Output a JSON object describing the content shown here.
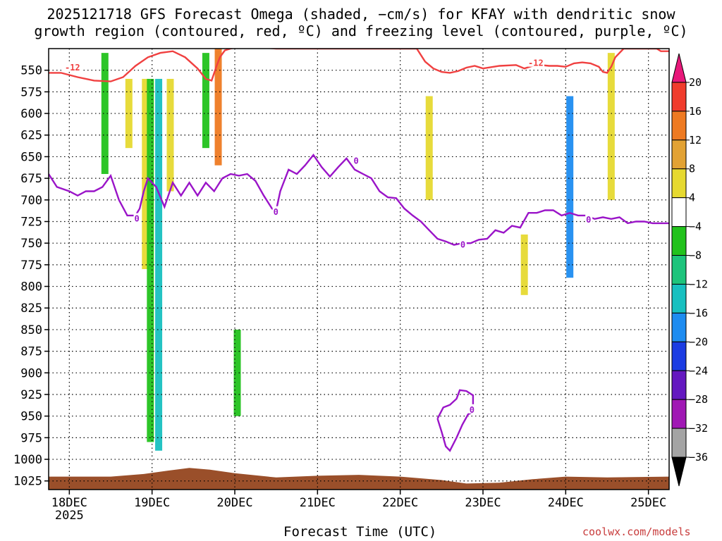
{
  "title_line1": "2025121718 GFS Forecast Omega (shaded, −cm/s) for KFAY with dendritic snow",
  "title_line2": "growth region (contoured, red, ºC) and freezing level (contoured, purple, ºC)",
  "credit": "coolwx.com/models",
  "chart_data": {
    "type": "heatmap",
    "title": "2025121718 GFS Forecast Omega (shaded, −cm/s) for KFAY with dendritic snow growth region (contoured, red, ºC) and freezing level (contoured, purple, ºC)",
    "xlabel": "Forecast Time (UTC)",
    "ylabel": "",
    "x_tick_labels": [
      "18DEC",
      "19DEC",
      "20DEC",
      "21DEC",
      "22DEC",
      "23DEC",
      "24DEC",
      "25DEC"
    ],
    "x_year_label": "2025",
    "x_range_days": [
      17.75,
      25.25
    ],
    "y_tick_labels": [
      "550",
      "575",
      "600",
      "625",
      "650",
      "675",
      "700",
      "725",
      "750",
      "775",
      "800",
      "825",
      "850",
      "875",
      "900",
      "925",
      "950",
      "975",
      "1000",
      "1025"
    ],
    "y_range_hpa": [
      1035,
      525
    ],
    "grid": true,
    "colorbar": {
      "labels": [
        "20",
        "16",
        "12",
        "8",
        "4",
        "−4",
        "−8",
        "−12",
        "−16",
        "−20",
        "−24",
        "−28",
        "−32",
        "−36"
      ],
      "colors": [
        "#e8187a",
        "#f03c2c",
        "#ee7a22",
        "#e2a234",
        "#e6d930",
        "#ffffff",
        "#22c21c",
        "#1ec47c",
        "#18c0c0",
        "#1e8cf0",
        "#1c3ce2",
        "#6418c0",
        "#a018b4",
        "#a4a4a4",
        "#000000"
      ]
    },
    "shaded_omega": [
      {
        "day": 18.43,
        "p_top": 530,
        "p_bot": 670,
        "value": -8
      },
      {
        "day": 18.72,
        "p_top": 560,
        "p_bot": 640,
        "value": 6
      },
      {
        "day": 18.92,
        "p_top": 560,
        "p_bot": 780,
        "value": 6
      },
      {
        "day": 18.98,
        "p_top": 560,
        "p_bot": 980,
        "value": -8
      },
      {
        "day": 19.08,
        "p_top": 560,
        "p_bot": 990,
        "value": -14
      },
      {
        "day": 19.22,
        "p_top": 560,
        "p_bot": 690,
        "value": 6
      },
      {
        "day": 19.65,
        "p_top": 530,
        "p_bot": 640,
        "value": -8
      },
      {
        "day": 19.8,
        "p_top": 525,
        "p_bot": 660,
        "value": 12
      },
      {
        "day": 20.03,
        "p_top": 850,
        "p_bot": 950,
        "value": -8
      },
      {
        "day": 22.35,
        "p_top": 580,
        "p_bot": 700,
        "value": 6
      },
      {
        "day": 24.05,
        "p_top": 580,
        "p_bot": 790,
        "value": -16
      },
      {
        "day": 24.55,
        "p_top": 530,
        "p_bot": 700,
        "value": 6
      },
      {
        "day": 23.5,
        "p_top": 740,
        "p_bot": 810,
        "value": 6
      }
    ],
    "series": [
      {
        "name": "-12",
        "color": "#f04040",
        "x": [
          17.75,
          17.9,
          18.1,
          18.3,
          18.5,
          18.65,
          18.8,
          18.95,
          19.1,
          19.25,
          19.4,
          19.55,
          19.65,
          19.72,
          19.78,
          19.82,
          19.88,
          19.95,
          20.1,
          20.5,
          21.0,
          21.5,
          22.0,
          22.2,
          22.3,
          22.4,
          22.5,
          22.6,
          22.7,
          22.8,
          22.9,
          23.0,
          23.2,
          23.4,
          23.5,
          23.6,
          23.7,
          23.8,
          23.9,
          24.0,
          24.1,
          24.2,
          24.3,
          24.4,
          24.45,
          24.5,
          24.55,
          24.6,
          24.7,
          24.85,
          25.0,
          25.1,
          25.15,
          25.25
        ],
        "y": [
          553,
          553,
          558,
          562,
          563,
          558,
          545,
          535,
          530,
          528,
          535,
          548,
          560,
          562,
          545,
          535,
          527,
          525,
          522,
          525,
          525,
          525,
          525,
          525,
          540,
          548,
          552,
          553,
          551,
          547,
          545,
          548,
          545,
          544,
          548,
          545,
          544,
          545,
          545,
          546,
          542,
          541,
          542,
          546,
          552,
          553,
          546,
          535,
          525,
          525,
          525,
          525,
          528,
          528
        ]
      },
      {
        "name": "0",
        "color": "#9a14c8",
        "x": [
          17.75,
          17.85,
          18.0,
          18.1,
          18.2,
          18.3,
          18.4,
          18.5,
          18.6,
          18.7,
          18.8,
          18.85,
          18.9,
          18.95,
          19.05,
          19.15,
          19.25,
          19.35,
          19.45,
          19.55,
          19.65,
          19.75,
          19.85,
          19.95,
          20.05,
          20.15,
          20.25,
          20.35,
          20.45,
          20.5,
          20.55,
          20.65,
          20.75,
          20.85,
          20.95,
          21.05,
          21.15,
          21.25,
          21.35,
          21.45,
          21.55,
          21.65,
          21.75,
          21.85,
          21.95,
          22.05,
          22.15,
          22.25,
          22.35,
          22.45,
          22.55,
          22.65,
          22.75,
          22.85,
          22.95,
          23.05,
          23.15,
          23.25,
          23.35,
          23.45,
          23.55,
          23.65,
          23.75,
          23.85,
          23.95,
          24.05,
          24.15,
          24.25,
          24.35,
          24.45,
          24.55,
          24.65,
          24.75,
          24.85,
          24.95,
          25.05,
          25.15,
          25.25
        ],
        "y": [
          670,
          685,
          690,
          695,
          690,
          690,
          685,
          672,
          700,
          718,
          718,
          710,
          690,
          675,
          685,
          708,
          680,
          695,
          680,
          695,
          680,
          690,
          675,
          670,
          672,
          670,
          678,
          695,
          710,
          712,
          690,
          665,
          670,
          660,
          648,
          662,
          673,
          662,
          652,
          665,
          670,
          675,
          690,
          697,
          698,
          710,
          718,
          725,
          735,
          745,
          748,
          752,
          750,
          750,
          746,
          745,
          735,
          738,
          730,
          732,
          715,
          715,
          712,
          712,
          718,
          715,
          718,
          718,
          722,
          720,
          722,
          720,
          727,
          725,
          725,
          727,
          727,
          727
        ]
      }
    ]
  }
}
